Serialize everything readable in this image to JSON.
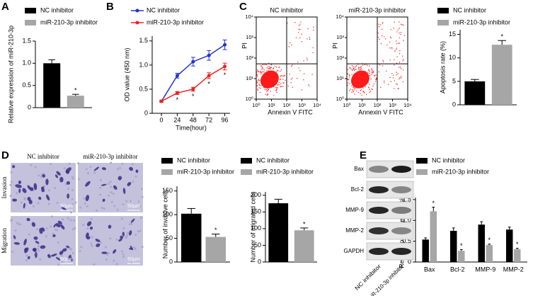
{
  "panel_labels": [
    "A",
    "B",
    "C",
    "D",
    "E"
  ],
  "chart_data": [
    {
      "type": "bar",
      "ylabel": "Relative expression of miR-210-3p",
      "categories": [
        null
      ],
      "series": [
        {
          "name": "NC inhibitor",
          "color": "#000000",
          "values": [
            1.0
          ],
          "errors": [
            0.08
          ]
        },
        {
          "name": "miR-210-3p inhibitor",
          "color": "#a6a6a6",
          "values": [
            0.27
          ],
          "errors": [
            0.03
          ],
          "significance": [
            "*"
          ]
        }
      ],
      "ylim": [
        0,
        1.5
      ],
      "yticks": [
        0,
        0.5,
        {
          "value": 1,
          "label": "1.0"
        },
        1.5
      ]
    },
    {
      "type": "line",
      "xlabel": "Time(hour)",
      "ylabel": "OD value (450 nm)",
      "x": [
        0,
        24,
        48,
        72,
        96
      ],
      "series": [
        {
          "name": "NC inhibitor",
          "color": "#2233cc",
          "values": [
            0.25,
            0.78,
            1.07,
            1.2,
            1.42
          ],
          "errors": [
            0.02,
            0.05,
            0.09,
            0.1,
            0.1
          ]
        },
        {
          "name": "miR-210-3p inhibitor",
          "color": "#ee2222",
          "values": [
            0.25,
            0.42,
            0.5,
            0.78,
            0.97
          ],
          "errors": [
            0.02,
            0.03,
            0.04,
            0.06,
            0.07
          ],
          "significance": [
            null,
            "*",
            "*",
            "*",
            "*"
          ]
        }
      ],
      "xlim": [
        -14,
        104
      ],
      "xticks": [
        0,
        24,
        48,
        72,
        96
      ],
      "ylim": [
        0,
        1.6
      ],
      "yticks": [
        0,
        0.5,
        {
          "value": 1,
          "label": "1.0"
        },
        1.5
      ]
    },
    {
      "type": "scatter",
      "title": "NC inhibitor",
      "xlabel": "Annexin V FITC",
      "ylabel": "PI",
      "xscale": "log",
      "yscale": "log",
      "xlim": [
        1,
        10000
      ],
      "ylim": [
        1,
        10000
      ],
      "xticks": [
        {
          "value": 1,
          "label": "10⁰"
        },
        {
          "value": 10,
          "label": "10¹"
        },
        {
          "value": 100,
          "label": "10²"
        },
        {
          "value": 1000,
          "label": "10³"
        },
        {
          "value": 10000,
          "label": "10⁴"
        }
      ],
      "yticks": [
        {
          "value": 1,
          "label": "10⁰"
        },
        {
          "value": 10,
          "label": "10¹"
        },
        {
          "value": 100,
          "label": "10²"
        },
        {
          "value": 1000,
          "label": "10³"
        },
        {
          "value": 10000,
          "label": "10⁴"
        }
      ]
    },
    {
      "type": "scatter",
      "title": "miR-210-3p inhibitor",
      "xlabel": "Annexin V FITC",
      "ylabel": "PI",
      "xscale": "log",
      "yscale": "log",
      "xlim": [
        1,
        10000
      ],
      "ylim": [
        1,
        10000
      ],
      "xticks": [
        {
          "value": 1,
          "label": "10⁰"
        },
        {
          "value": 10,
          "label": "10¹"
        },
        {
          "value": 100,
          "label": "10²"
        },
        {
          "value": 1000,
          "label": "10³"
        },
        {
          "value": 10000,
          "label": "10⁴"
        }
      ],
      "yticks": [
        {
          "value": 1,
          "label": "10⁰"
        },
        {
          "value": 10,
          "label": "10¹"
        },
        {
          "value": 100,
          "label": "10²"
        },
        {
          "value": 1000,
          "label": "10³"
        },
        {
          "value": 10000,
          "label": "10⁴"
        }
      ]
    },
    {
      "type": "bar",
      "ylabel": "Apoptosis rate (%)",
      "categories": [
        null
      ],
      "series": [
        {
          "name": "NC inhibitor",
          "color": "#000000",
          "values": [
            5.0
          ],
          "errors": [
            0.4
          ]
        },
        {
          "name": "miR-210-3p inhibitor",
          "color": "#a6a6a6",
          "values": [
            12.8
          ],
          "errors": [
            0.9
          ],
          "significance": [
            "*"
          ]
        }
      ],
      "ylim": [
        0,
        16
      ],
      "yticks": [
        0,
        5,
        10,
        15
      ]
    },
    {
      "type": "bar",
      "ylabel": "Number of invasive cells",
      "categories": [
        null
      ],
      "series": [
        {
          "name": "NC inhibitor",
          "color": "#000000",
          "values": [
            102
          ],
          "errors": [
            11
          ]
        },
        {
          "name": "miR-210-3p inhibitor",
          "color": "#a6a6a6",
          "values": [
            53
          ],
          "errors": [
            6
          ],
          "significance": [
            "*"
          ]
        }
      ],
      "ylim": [
        0,
        160
      ],
      "yticks": [
        0,
        50,
        100,
        150
      ]
    },
    {
      "type": "bar",
      "ylabel": "Number of migrated cells",
      "categories": [
        null
      ],
      "series": [
        {
          "name": "NC inhibitor",
          "color": "#000000",
          "values": [
            176
          ],
          "errors": [
            12
          ]
        },
        {
          "name": "miR-210-3p inhibitor",
          "color": "#a6a6a6",
          "values": [
            95
          ],
          "errors": [
            7
          ],
          "significance": [
            "*"
          ]
        }
      ],
      "ylim": [
        0,
        210
      ],
      "yticks": [
        0,
        50,
        100,
        150,
        200
      ]
    },
    {
      "type": "bar",
      "ylabel": "Relative protein expression",
      "categories": [
        "Bax",
        "Bcl-2",
        "MMP-9",
        "MMP-2"
      ],
      "series": [
        {
          "name": "NC inhibitor",
          "color": "#000000",
          "values": [
            0.54,
            0.75,
            0.9,
            0.78
          ],
          "errors": [
            0.04,
            0.07,
            0.07,
            0.06
          ]
        },
        {
          "name": "miR-210-3p inhibitor",
          "color": "#a6a6a6",
          "values": [
            1.22,
            0.27,
            0.41,
            0.31
          ],
          "errors": [
            0.1,
            0.03,
            0.02,
            0.02
          ],
          "significance": [
            "*",
            "*",
            "*",
            "*"
          ]
        }
      ],
      "ylim": [
        0,
        1.55
      ],
      "yticks": [
        0,
        0.5,
        {
          "value": 1,
          "label": "1.0"
        },
        1.5
      ]
    }
  ],
  "micrographs": {
    "columns": [
      "NC inhibitor",
      "miR-210-3p inhibitor"
    ],
    "rows": [
      "Invasion",
      "Migration"
    ],
    "scale_bar": "50μm"
  },
  "western_blot": {
    "proteins": [
      "Bax",
      "Bcl-2",
      "MMP-9",
      "MMP-2",
      "GAPDH"
    ],
    "lanes": [
      "NC inhibitor",
      "miR-210-3p inhibitor"
    ]
  }
}
